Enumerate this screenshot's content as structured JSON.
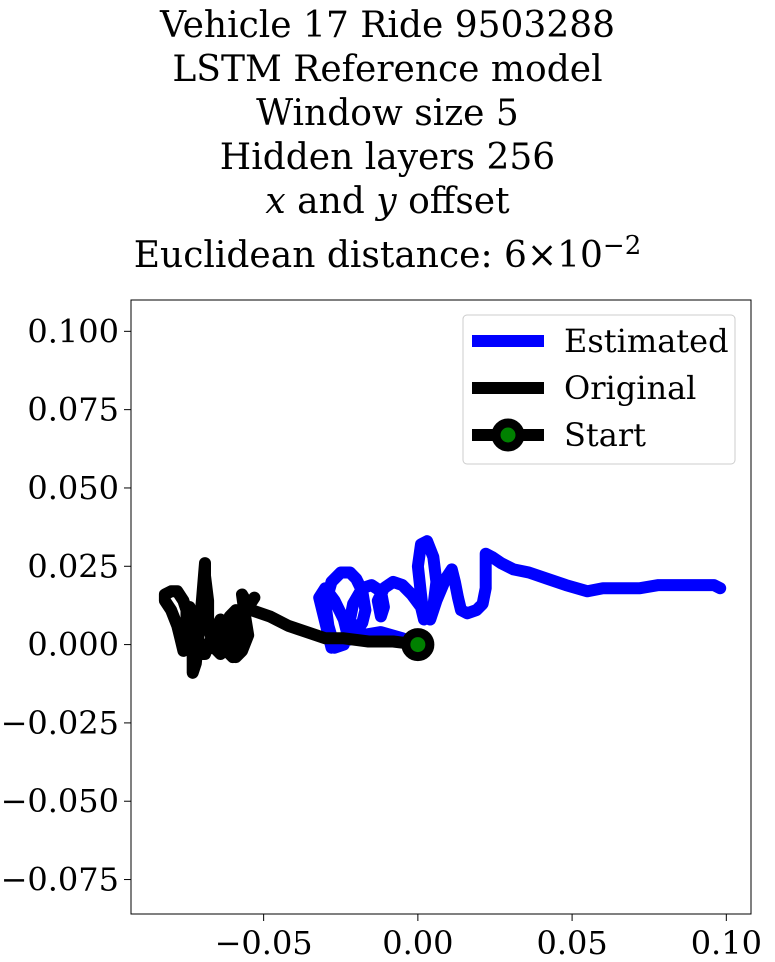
{
  "chart_data": {
    "type": "line",
    "title_lines": [
      "Vehicle 17 Ride 9503288",
      "LSTM Reference model",
      "Window size 5",
      "Hidden layers 256"
    ],
    "title_offset": {
      "x": "x",
      "and": " and ",
      "y": "y",
      "rest": " offset"
    },
    "title_distance": {
      "prefix": "Euclidean distance: ",
      "mantissa": "6",
      "times": "×",
      "base": "10",
      "exponent": "−2"
    },
    "xlim": [
      -0.093,
      0.108
    ],
    "ylim": [
      -0.086,
      0.11
    ],
    "xticks": [
      {
        "value": -0.05,
        "label": "−0.05"
      },
      {
        "value": 0.0,
        "label": "0.00"
      },
      {
        "value": 0.05,
        "label": "0.05"
      },
      {
        "value": 0.1,
        "label": "0.10"
      }
    ],
    "yticks": [
      {
        "value": 0.1,
        "label": "0.100"
      },
      {
        "value": 0.075,
        "label": "0.075"
      },
      {
        "value": 0.05,
        "label": "0.050"
      },
      {
        "value": 0.025,
        "label": "0.025"
      },
      {
        "value": 0.0,
        "label": "0.000"
      },
      {
        "value": -0.025,
        "label": "−0.025"
      },
      {
        "value": -0.05,
        "label": "−0.050"
      },
      {
        "value": -0.075,
        "label": "−0.075"
      }
    ],
    "grid": false,
    "legend_position": "top-right",
    "series": [
      {
        "name": "Estimated",
        "color": "#0000ff",
        "x": [
          0.0,
          -0.005,
          -0.012,
          -0.018,
          -0.024,
          -0.028,
          -0.032,
          -0.03,
          -0.027,
          -0.024,
          -0.023,
          -0.024,
          -0.027,
          -0.029,
          -0.03,
          -0.028,
          -0.025,
          -0.022,
          -0.02,
          -0.018,
          -0.017,
          -0.018,
          -0.02,
          -0.022,
          -0.021,
          -0.018,
          -0.015,
          -0.012,
          -0.011,
          -0.012,
          -0.013,
          -0.011,
          -0.008,
          -0.005,
          -0.002,
          0.001,
          0.002,
          0.001,
          0.0,
          0.001,
          0.003,
          0.005,
          0.006,
          0.005,
          0.004,
          0.006,
          0.009,
          0.011,
          0.012,
          0.013,
          0.014,
          0.016,
          0.019,
          0.021,
          0.022,
          0.022,
          0.022,
          0.022,
          0.024,
          0.027,
          0.031,
          0.036,
          0.042,
          0.048,
          0.055,
          0.06,
          0.066,
          0.072,
          0.078,
          0.084,
          0.09,
          0.096,
          0.098
        ],
        "y": [
          0.0,
          0.002,
          0.004,
          0.003,
          0.001,
          -0.001,
          0.015,
          0.018,
          0.014,
          0.008,
          0.004,
          0.0,
          -0.001,
          0.006,
          0.013,
          0.02,
          0.023,
          0.023,
          0.021,
          0.017,
          0.011,
          0.007,
          0.004,
          0.008,
          0.013,
          0.018,
          0.019,
          0.017,
          0.012,
          0.009,
          0.014,
          0.018,
          0.02,
          0.019,
          0.016,
          0.012,
          0.008,
          0.016,
          0.025,
          0.032,
          0.033,
          0.028,
          0.02,
          0.012,
          0.008,
          0.014,
          0.021,
          0.024,
          0.02,
          0.015,
          0.011,
          0.01,
          0.011,
          0.013,
          0.018,
          0.024,
          0.028,
          0.029,
          0.028,
          0.026,
          0.024,
          0.023,
          0.021,
          0.019,
          0.017,
          0.018,
          0.018,
          0.018,
          0.019,
          0.019,
          0.019,
          0.019,
          0.018
        ]
      },
      {
        "name": "Original",
        "color": "#000000",
        "x": [
          0.0,
          -0.008,
          -0.016,
          -0.024,
          -0.03,
          -0.036,
          -0.042,
          -0.048,
          -0.054,
          -0.057,
          -0.056,
          -0.055,
          -0.057,
          -0.059,
          -0.059,
          -0.059,
          -0.061,
          -0.063,
          -0.064,
          -0.064,
          -0.066,
          -0.068,
          -0.068,
          -0.069,
          -0.069,
          -0.07,
          -0.071,
          -0.072,
          -0.073,
          -0.073,
          -0.074,
          -0.076,
          -0.078,
          -0.08,
          -0.082,
          -0.082,
          -0.08,
          -0.078,
          -0.077,
          -0.076,
          -0.075,
          -0.075,
          -0.074,
          -0.073,
          -0.072,
          -0.071,
          -0.07,
          -0.069,
          -0.067,
          -0.065,
          -0.064,
          -0.063,
          -0.062,
          -0.061,
          -0.061,
          -0.06,
          -0.059,
          -0.057,
          -0.055,
          -0.053
        ],
        "y": [
          0.0,
          0.001,
          0.001,
          0.002,
          0.002,
          0.004,
          0.006,
          0.009,
          0.011,
          0.016,
          0.009,
          0.003,
          -0.002,
          -0.004,
          0.005,
          0.011,
          0.009,
          0.003,
          -0.003,
          -0.003,
          -0.001,
          0.006,
          0.014,
          0.022,
          0.026,
          0.014,
          0.004,
          -0.006,
          -0.009,
          0.0,
          0.008,
          0.014,
          0.017,
          0.017,
          0.016,
          0.014,
          0.011,
          0.006,
          0.002,
          -0.002,
          0.004,
          0.011,
          0.012,
          0.008,
          0.004,
          0.001,
          -0.003,
          -0.003,
          0.002,
          0.006,
          0.008,
          0.006,
          0.002,
          0.0,
          -0.003,
          -0.004,
          0.003,
          0.008,
          0.012,
          0.015
        ]
      }
    ],
    "start_marker": {
      "name": "Start",
      "x": 0.0,
      "y": 0.0,
      "fill": "#008000",
      "edge": "#000000"
    }
  }
}
